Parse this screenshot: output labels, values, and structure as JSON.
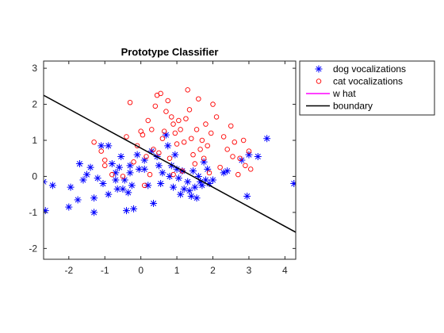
{
  "chart_data": {
    "type": "scatter",
    "title": "Prototype Classifier",
    "xlabel": "",
    "ylabel": "",
    "xlim": [
      -2.7,
      4.3
    ],
    "ylim": [
      -2.3,
      3.2
    ],
    "xticks": [
      -2,
      -1,
      0,
      1,
      2,
      3,
      4
    ],
    "yticks": [
      -2,
      -1,
      0,
      1,
      2,
      3
    ],
    "grid": false,
    "legend_position": "top-right",
    "series": [
      {
        "name": "dog vocalizations",
        "marker": "asterisk",
        "color": "#0000ff",
        "points": [
          [
            -2.7,
            -0.15
          ],
          [
            -2.65,
            -0.95
          ],
          [
            -2.45,
            -0.25
          ],
          [
            -2.0,
            -0.85
          ],
          [
            -1.95,
            -0.3
          ],
          [
            -1.75,
            -0.65
          ],
          [
            -1.7,
            0.35
          ],
          [
            -1.6,
            -0.1
          ],
          [
            -1.5,
            0.05
          ],
          [
            -1.4,
            0.25
          ],
          [
            -1.3,
            -1.0
          ],
          [
            -1.3,
            -0.6
          ],
          [
            -1.2,
            -0.05
          ],
          [
            -1.1,
            0.85
          ],
          [
            -1.05,
            -0.2
          ],
          [
            -0.9,
            0.85
          ],
          [
            -0.9,
            -0.5
          ],
          [
            -0.8,
            0.35
          ],
          [
            -0.7,
            -0.1
          ],
          [
            -0.7,
            0.1
          ],
          [
            -0.65,
            -0.35
          ],
          [
            -0.6,
            0.25
          ],
          [
            -0.55,
            0.55
          ],
          [
            -0.5,
            -0.35
          ],
          [
            -0.45,
            -0.1
          ],
          [
            -0.4,
            -0.95
          ],
          [
            -0.35,
            -0.45
          ],
          [
            -0.3,
            0.1
          ],
          [
            -0.3,
            0.3
          ],
          [
            -0.25,
            -0.25
          ],
          [
            -0.2,
            -0.9
          ],
          [
            -0.1,
            0.6
          ],
          [
            -0.05,
            0.2
          ],
          [
            0.1,
            0.45
          ],
          [
            0.1,
            0.2
          ],
          [
            0.2,
            -0.25
          ],
          [
            0.3,
            0.7
          ],
          [
            0.35,
            -0.75
          ],
          [
            0.45,
            0.55
          ],
          [
            0.5,
            0.3
          ],
          [
            0.55,
            -0.2
          ],
          [
            0.6,
            0.1
          ],
          [
            0.7,
            1.15
          ],
          [
            0.75,
            0.85
          ],
          [
            0.8,
            0.0
          ],
          [
            0.85,
            0.3
          ],
          [
            0.9,
            -0.3
          ],
          [
            0.95,
            0.6
          ],
          [
            1.0,
            0.2
          ],
          [
            1.05,
            -0.05
          ],
          [
            1.1,
            -0.5
          ],
          [
            1.15,
            0.15
          ],
          [
            1.2,
            -0.35
          ],
          [
            1.3,
            -0.15
          ],
          [
            1.35,
            -0.4
          ],
          [
            1.4,
            -0.55
          ],
          [
            1.45,
            0.15
          ],
          [
            1.5,
            -0.3
          ],
          [
            1.55,
            -0.6
          ],
          [
            1.6,
            0.0
          ],
          [
            1.65,
            -0.15
          ],
          [
            1.7,
            -0.25
          ],
          [
            1.75,
            0.4
          ],
          [
            1.8,
            -0.1
          ],
          [
            1.85,
            0.2
          ],
          [
            1.9,
            -0.2
          ],
          [
            2.0,
            -0.1
          ],
          [
            2.3,
            0.1
          ],
          [
            2.4,
            0.15
          ],
          [
            2.8,
            0.45
          ],
          [
            2.95,
            -0.55
          ],
          [
            3.0,
            0.6
          ],
          [
            3.25,
            0.55
          ],
          [
            3.5,
            1.05
          ],
          [
            4.25,
            -0.2
          ]
        ]
      },
      {
        "name": "cat vocalizations",
        "marker": "circle",
        "color": "#ff0000",
        "points": [
          [
            -1.3,
            0.95
          ],
          [
            -1.1,
            0.7
          ],
          [
            -1.0,
            0.45
          ],
          [
            -1.0,
            0.3
          ],
          [
            -0.8,
            0.05
          ],
          [
            -0.5,
            0.0
          ],
          [
            -0.4,
            1.1
          ],
          [
            -0.3,
            2.05
          ],
          [
            -0.2,
            0.4
          ],
          [
            -0.1,
            0.85
          ],
          [
            0.0,
            1.25
          ],
          [
            0.05,
            1.15
          ],
          [
            0.1,
            -0.25
          ],
          [
            0.15,
            0.55
          ],
          [
            0.2,
            1.55
          ],
          [
            0.25,
            0.05
          ],
          [
            0.3,
            1.3
          ],
          [
            0.35,
            0.75
          ],
          [
            0.4,
            1.95
          ],
          [
            0.45,
            2.25
          ],
          [
            0.5,
            0.65
          ],
          [
            0.55,
            2.3
          ],
          [
            0.6,
            1.05
          ],
          [
            0.65,
            1.25
          ],
          [
            0.7,
            1.8
          ],
          [
            0.75,
            2.1
          ],
          [
            0.8,
            0.5
          ],
          [
            0.85,
            1.65
          ],
          [
            0.9,
            1.45
          ],
          [
            0.95,
            1.2
          ],
          [
            1.0,
            0.9
          ],
          [
            1.05,
            1.55
          ],
          [
            1.1,
            1.3
          ],
          [
            1.15,
            0.15
          ],
          [
            1.2,
            0.95
          ],
          [
            1.25,
            1.6
          ],
          [
            1.3,
            2.4
          ],
          [
            1.35,
            1.85
          ],
          [
            1.4,
            1.05
          ],
          [
            1.45,
            0.6
          ],
          [
            1.5,
            0.35
          ],
          [
            1.55,
            1.3
          ],
          [
            1.6,
            2.15
          ],
          [
            1.65,
            0.75
          ],
          [
            1.7,
            1.0
          ],
          [
            1.75,
            0.5
          ],
          [
            1.8,
            1.45
          ],
          [
            1.85,
            0.85
          ],
          [
            1.9,
            0.1
          ],
          [
            2.0,
            2.0
          ],
          [
            2.1,
            1.65
          ],
          [
            2.2,
            0.25
          ],
          [
            2.3,
            1.1
          ],
          [
            2.4,
            0.75
          ],
          [
            2.5,
            1.4
          ],
          [
            2.6,
            0.95
          ],
          [
            2.7,
            0.05
          ],
          [
            2.75,
            0.5
          ],
          [
            2.85,
            1.0
          ],
          [
            2.9,
            0.3
          ],
          [
            3.0,
            0.7
          ],
          [
            3.05,
            0.2
          ],
          [
            2.55,
            0.55
          ],
          [
            1.95,
            1.2
          ],
          [
            0.9,
            0.05
          ]
        ]
      },
      {
        "name": "w hat",
        "line": true,
        "color": "#ff00ff",
        "points": []
      },
      {
        "name": "boundary",
        "line": true,
        "color": "#000000",
        "points": [
          [
            -2.7,
            2.25
          ],
          [
            4.3,
            -1.55
          ]
        ]
      }
    ]
  }
}
